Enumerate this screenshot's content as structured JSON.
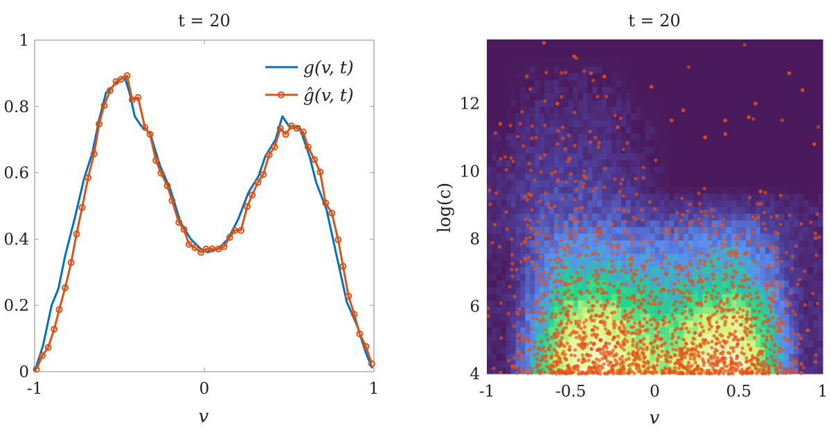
{
  "chart_data": [
    {
      "type": "line",
      "title": "t = 20",
      "xlabel": "v",
      "ylabel": "",
      "xlim": [
        -1,
        1
      ],
      "ylim": [
        0,
        1
      ],
      "xticks": [
        "-1",
        "0",
        "1"
      ],
      "yticks": [
        "0",
        "0.2",
        "0.4",
        "0.6",
        "0.8",
        "1"
      ],
      "grid": false,
      "legend": "top-right",
      "series": [
        {
          "name": "g(v, t)",
          "color": "#0072BD",
          "marker": "none",
          "x": [
            -1,
            -0.95,
            -0.9,
            -0.86,
            -0.82,
            -0.76,
            -0.71,
            -0.66,
            -0.62,
            -0.58,
            -0.54,
            -0.5,
            -0.47,
            -0.44,
            -0.41,
            -0.37,
            -0.32,
            -0.26,
            -0.2,
            -0.14,
            -0.08,
            -0.02,
            0.02,
            0.08,
            0.14,
            0.2,
            0.26,
            0.32,
            0.36,
            0.42,
            0.46,
            0.5,
            0.56,
            0.62,
            0.66,
            0.72,
            0.78,
            0.84,
            0.9,
            0.95,
            0.99
          ],
          "y": [
            0,
            0.08,
            0.2,
            0.25,
            0.35,
            0.47,
            0.58,
            0.66,
            0.76,
            0.84,
            0.86,
            0.88,
            0.89,
            0.84,
            0.77,
            0.74,
            0.72,
            0.62,
            0.55,
            0.45,
            0.4,
            0.37,
            0.36,
            0.37,
            0.4,
            0.46,
            0.54,
            0.59,
            0.65,
            0.7,
            0.77,
            0.74,
            0.74,
            0.65,
            0.57,
            0.49,
            0.35,
            0.21,
            0.14,
            0.06,
            0.01
          ]
        },
        {
          "name": "ĝ(v, t)",
          "color": "#D95319",
          "marker": "circle",
          "x": [
            -0.99,
            -0.955,
            -0.92,
            -0.885,
            -0.855,
            -0.82,
            -0.785,
            -0.753,
            -0.72,
            -0.685,
            -0.65,
            -0.62,
            -0.59,
            -0.555,
            -0.52,
            -0.49,
            -0.455,
            -0.425,
            -0.39,
            -0.35,
            -0.32,
            -0.285,
            -0.255,
            -0.218,
            -0.19,
            -0.15,
            -0.12,
            -0.09,
            -0.055,
            -0.02,
            0.01,
            0.047,
            0.084,
            0.116,
            0.15,
            0.18,
            0.216,
            0.253,
            0.282,
            0.316,
            0.348,
            0.382,
            0.415,
            0.448,
            0.48,
            0.514,
            0.546,
            0.583,
            0.612,
            0.649,
            0.683,
            0.715,
            0.752,
            0.789,
            0.818,
            0.85,
            0.884,
            0.916,
            0.953,
            0.987
          ],
          "y": [
            0.007,
            0.048,
            0.073,
            0.128,
            0.187,
            0.253,
            0.329,
            0.415,
            0.495,
            0.585,
            0.657,
            0.747,
            0.803,
            0.848,
            0.875,
            0.882,
            0.893,
            0.82,
            0.827,
            0.737,
            0.716,
            0.637,
            0.599,
            0.561,
            0.516,
            0.45,
            0.429,
            0.384,
            0.374,
            0.36,
            0.37,
            0.37,
            0.37,
            0.377,
            0.405,
            0.426,
            0.426,
            0.498,
            0.533,
            0.571,
            0.595,
            0.654,
            0.678,
            0.734,
            0.716,
            0.741,
            0.734,
            0.723,
            0.678,
            0.64,
            0.602,
            0.509,
            0.478,
            0.398,
            0.318,
            0.228,
            0.173,
            0.114,
            0.076,
            0.024
          ]
        }
      ]
    },
    {
      "type": "heatmap",
      "title": "t = 20",
      "xlabel": "v",
      "ylabel": "log(c)",
      "xlim": [
        -1,
        1
      ],
      "ylim": [
        4,
        13.9
      ],
      "xticks": [
        "-1",
        "-0.5",
        "0",
        "0.5",
        "1"
      ],
      "yticks": [
        "4",
        "6",
        "8",
        "10",
        "12"
      ],
      "grid": false,
      "colormap": [
        "#4b1a5c",
        "#4f3f9a",
        "#5b8ef0",
        "#1fd98a",
        "#d8f47a",
        "#fbfce0"
      ],
      "scatter_color": "#e8501a",
      "x_bin_edges": [
        -1,
        -0.8,
        -0.6,
        -0.4,
        -0.2,
        0,
        0.2,
        0.4,
        0.6,
        0.8,
        1
      ],
      "y_bin_edges": [
        4,
        5,
        6,
        7,
        8,
        9,
        10,
        11,
        12,
        13,
        14
      ],
      "density": [
        [
          0.05,
          0.55,
          0.9,
          0.95,
          0.8,
          0.75,
          0.9,
          0.95,
          0.6,
          0.1
        ],
        [
          0.05,
          0.45,
          0.8,
          0.85,
          0.7,
          0.65,
          0.8,
          0.85,
          0.5,
          0.1
        ],
        [
          0.05,
          0.35,
          0.6,
          0.6,
          0.55,
          0.5,
          0.55,
          0.6,
          0.4,
          0.08
        ],
        [
          0.05,
          0.3,
          0.45,
          0.45,
          0.4,
          0.4,
          0.45,
          0.45,
          0.3,
          0.05
        ],
        [
          0.1,
          0.25,
          0.3,
          0.3,
          0.25,
          0.25,
          0.3,
          0.3,
          0.2,
          0.1
        ],
        [
          0.1,
          0.2,
          0.22,
          0.2,
          0.12,
          0,
          0,
          0,
          0,
          0
        ],
        [
          0.05,
          0.15,
          0.15,
          0.12,
          0.05,
          0,
          0,
          0,
          0,
          0
        ],
        [
          0,
          0.1,
          0.1,
          0.1,
          0.03,
          0,
          0,
          0,
          0,
          0
        ],
        [
          0,
          0.05,
          0.05,
          0.05,
          0,
          0,
          0,
          0,
          0,
          0
        ],
        [
          0,
          0,
          0,
          0,
          0,
          0,
          0,
          0,
          0,
          0
        ]
      ],
      "scatter_outliers": {
        "x": [
          -0.66,
          -0.48,
          -0.38,
          -0.3,
          -0.02,
          -0.22,
          -0.92,
          -0.58,
          0.8,
          0.88,
          0.6,
          0.56,
          0.42,
          0.42,
          0.17,
          0.1,
          0.95,
          0.63,
          0.3
        ],
        "y": [
          13.8,
          13.4,
          12.9,
          12.8,
          12.5,
          11.3,
          11.4,
          12.0,
          12.9,
          12.4,
          12.0,
          11.6,
          11.1,
          11.5,
          11.8,
          11.5,
          10.8,
          9.4,
          11.0
        ]
      }
    }
  ]
}
